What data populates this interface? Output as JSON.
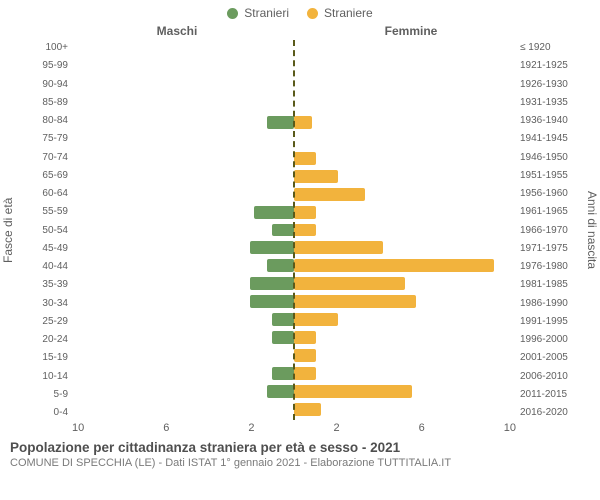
{
  "chart": {
    "type": "population-pyramid",
    "background_color": "#ffffff",
    "text_color": "#5f5f5f",
    "legend": {
      "male": {
        "label": "Stranieri",
        "color": "#6b9b5e"
      },
      "female": {
        "label": "Straniere",
        "color": "#f2b33d"
      }
    },
    "headers": {
      "left": "Maschi",
      "right": "Femmine"
    },
    "y_left_title": "Fasce di età",
    "y_right_title": "Anni di nascita",
    "centerline_color": "#5a5a1a",
    "x_max": 10,
    "x_ticks": [
      "10",
      "6",
      "2",
      "2",
      "6",
      "10"
    ],
    "age_groups": [
      {
        "age": "100+",
        "birth": "≤ 1920",
        "m": 0,
        "f": 0
      },
      {
        "age": "95-99",
        "birth": "1921-1925",
        "m": 0,
        "f": 0
      },
      {
        "age": "90-94",
        "birth": "1926-1930",
        "m": 0,
        "f": 0
      },
      {
        "age": "85-89",
        "birth": "1931-1935",
        "m": 0,
        "f": 0
      },
      {
        "age": "80-84",
        "birth": "1936-1940",
        "m": 1.2,
        "f": 0.8
      },
      {
        "age": "75-79",
        "birth": "1941-1945",
        "m": 0,
        "f": 0
      },
      {
        "age": "70-74",
        "birth": "1946-1950",
        "m": 0,
        "f": 1.0
      },
      {
        "age": "65-69",
        "birth": "1951-1955",
        "m": 0,
        "f": 2.0
      },
      {
        "age": "60-64",
        "birth": "1956-1960",
        "m": 0,
        "f": 3.2
      },
      {
        "age": "55-59",
        "birth": "1961-1965",
        "m": 1.8,
        "f": 1.0
      },
      {
        "age": "50-54",
        "birth": "1966-1970",
        "m": 1.0,
        "f": 1.0
      },
      {
        "age": "45-49",
        "birth": "1971-1975",
        "m": 2.0,
        "f": 4.0
      },
      {
        "age": "40-44",
        "birth": "1976-1980",
        "m": 1.2,
        "f": 9.0
      },
      {
        "age": "35-39",
        "birth": "1981-1985",
        "m": 2.0,
        "f": 5.0
      },
      {
        "age": "30-34",
        "birth": "1986-1990",
        "m": 2.0,
        "f": 5.5
      },
      {
        "age": "25-29",
        "birth": "1991-1995",
        "m": 1.0,
        "f": 2.0
      },
      {
        "age": "20-24",
        "birth": "1996-2000",
        "m": 1.0,
        "f": 1.0
      },
      {
        "age": "15-19",
        "birth": "2001-2005",
        "m": 0,
        "f": 1.0
      },
      {
        "age": "10-14",
        "birth": "2006-2010",
        "m": 1.0,
        "f": 1.0
      },
      {
        "age": "5-9",
        "birth": "2011-2015",
        "m": 1.2,
        "f": 5.3
      },
      {
        "age": "0-4",
        "birth": "2016-2020",
        "m": 0,
        "f": 1.2
      }
    ],
    "footer": {
      "title": "Popolazione per cittadinanza straniera per età e sesso - 2021",
      "subtitle": "COMUNE DI SPECCHIA (LE) - Dati ISTAT 1° gennaio 2021 - Elaborazione TUTTITALIA.IT"
    }
  }
}
